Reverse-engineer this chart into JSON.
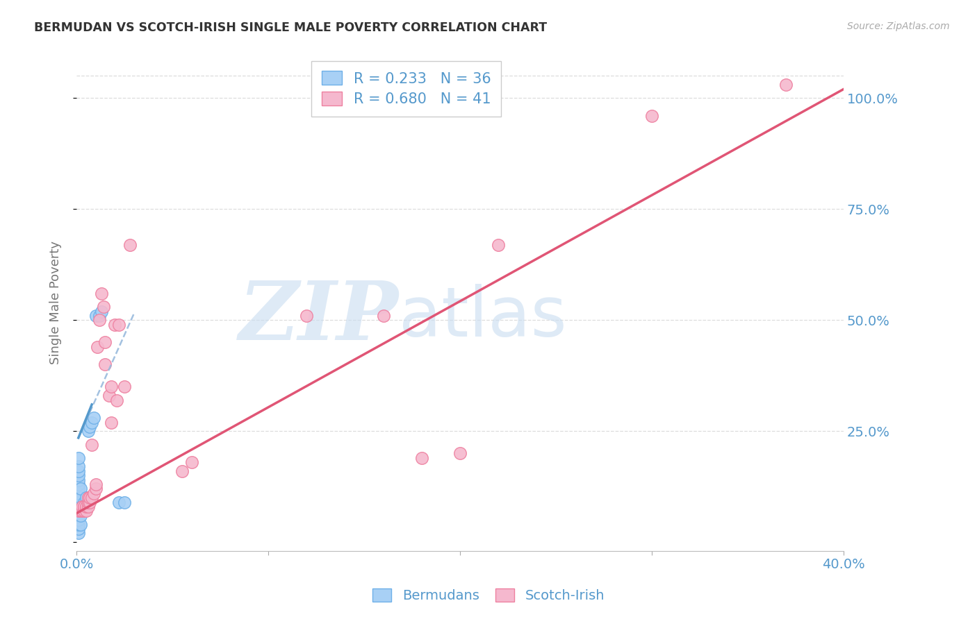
{
  "title": "BERMUDAN VS SCOTCH-IRISH SINGLE MALE POVERTY CORRELATION CHART",
  "source": "Source: ZipAtlas.com",
  "ylabel": "Single Male Poverty",
  "watermark_zip": "ZIP",
  "watermark_atlas": "atlas",
  "legend_blue_r": "R = 0.233",
  "legend_blue_n": "N = 36",
  "legend_pink_r": "R = 0.680",
  "legend_pink_n": "N = 41",
  "xlim": [
    0.0,
    0.4
  ],
  "ylim": [
    -0.02,
    1.1
  ],
  "plot_ylim": [
    0.0,
    1.1
  ],
  "yticks": [
    0.0,
    0.25,
    0.5,
    0.75,
    1.0
  ],
  "ytick_labels": [
    "",
    "25.0%",
    "50.0%",
    "75.0%",
    "100.0%"
  ],
  "xticks": [
    0.0,
    0.1,
    0.2,
    0.3,
    0.4
  ],
  "xtick_labels": [
    "0.0%",
    "",
    "",
    "",
    "40.0%"
  ],
  "blue_fill": "#A8D0F5",
  "pink_fill": "#F5B8CE",
  "blue_edge": "#6EB0E8",
  "pink_edge": "#EE80A0",
  "blue_line_color": "#5599CC",
  "pink_line_color": "#E05575",
  "title_color": "#333333",
  "axis_label_color": "#5599CC",
  "grid_color": "#DDDDDD",
  "watermark_color": "#C8DCF0",
  "blue_points_x": [
    0.001,
    0.001,
    0.001,
    0.001,
    0.001,
    0.001,
    0.001,
    0.001,
    0.001,
    0.001,
    0.001,
    0.001,
    0.001,
    0.001,
    0.001,
    0.001,
    0.001,
    0.002,
    0.002,
    0.002,
    0.002,
    0.002,
    0.003,
    0.003,
    0.004,
    0.004,
    0.005,
    0.006,
    0.007,
    0.008,
    0.009,
    0.01,
    0.012,
    0.013,
    0.022,
    0.025
  ],
  "blue_points_y": [
    0.02,
    0.03,
    0.04,
    0.05,
    0.06,
    0.07,
    0.08,
    0.09,
    0.1,
    0.11,
    0.12,
    0.13,
    0.14,
    0.15,
    0.16,
    0.17,
    0.19,
    0.04,
    0.06,
    0.08,
    0.1,
    0.12,
    0.07,
    0.08,
    0.08,
    0.09,
    0.1,
    0.25,
    0.26,
    0.27,
    0.28,
    0.51,
    0.51,
    0.52,
    0.09,
    0.09
  ],
  "pink_points_x": [
    0.001,
    0.002,
    0.003,
    0.003,
    0.004,
    0.004,
    0.005,
    0.005,
    0.006,
    0.006,
    0.006,
    0.007,
    0.007,
    0.008,
    0.008,
    0.009,
    0.01,
    0.01,
    0.011,
    0.012,
    0.013,
    0.014,
    0.015,
    0.015,
    0.017,
    0.018,
    0.018,
    0.02,
    0.021,
    0.022,
    0.025,
    0.028,
    0.055,
    0.06,
    0.12,
    0.16,
    0.18,
    0.2,
    0.22,
    0.3,
    0.37
  ],
  "pink_points_y": [
    0.07,
    0.07,
    0.07,
    0.08,
    0.07,
    0.08,
    0.07,
    0.08,
    0.08,
    0.09,
    0.1,
    0.09,
    0.1,
    0.1,
    0.22,
    0.11,
    0.12,
    0.13,
    0.44,
    0.5,
    0.56,
    0.53,
    0.4,
    0.45,
    0.33,
    0.27,
    0.35,
    0.49,
    0.32,
    0.49,
    0.35,
    0.67,
    0.16,
    0.18,
    0.51,
    0.51,
    0.19,
    0.2,
    0.67,
    0.96,
    1.03
  ],
  "blue_line_x": [
    0.001,
    0.03
  ],
  "blue_line_y": [
    0.235,
    0.515
  ],
  "pink_line_x": [
    0.0,
    0.4
  ],
  "pink_line_y": [
    0.065,
    1.02
  ]
}
